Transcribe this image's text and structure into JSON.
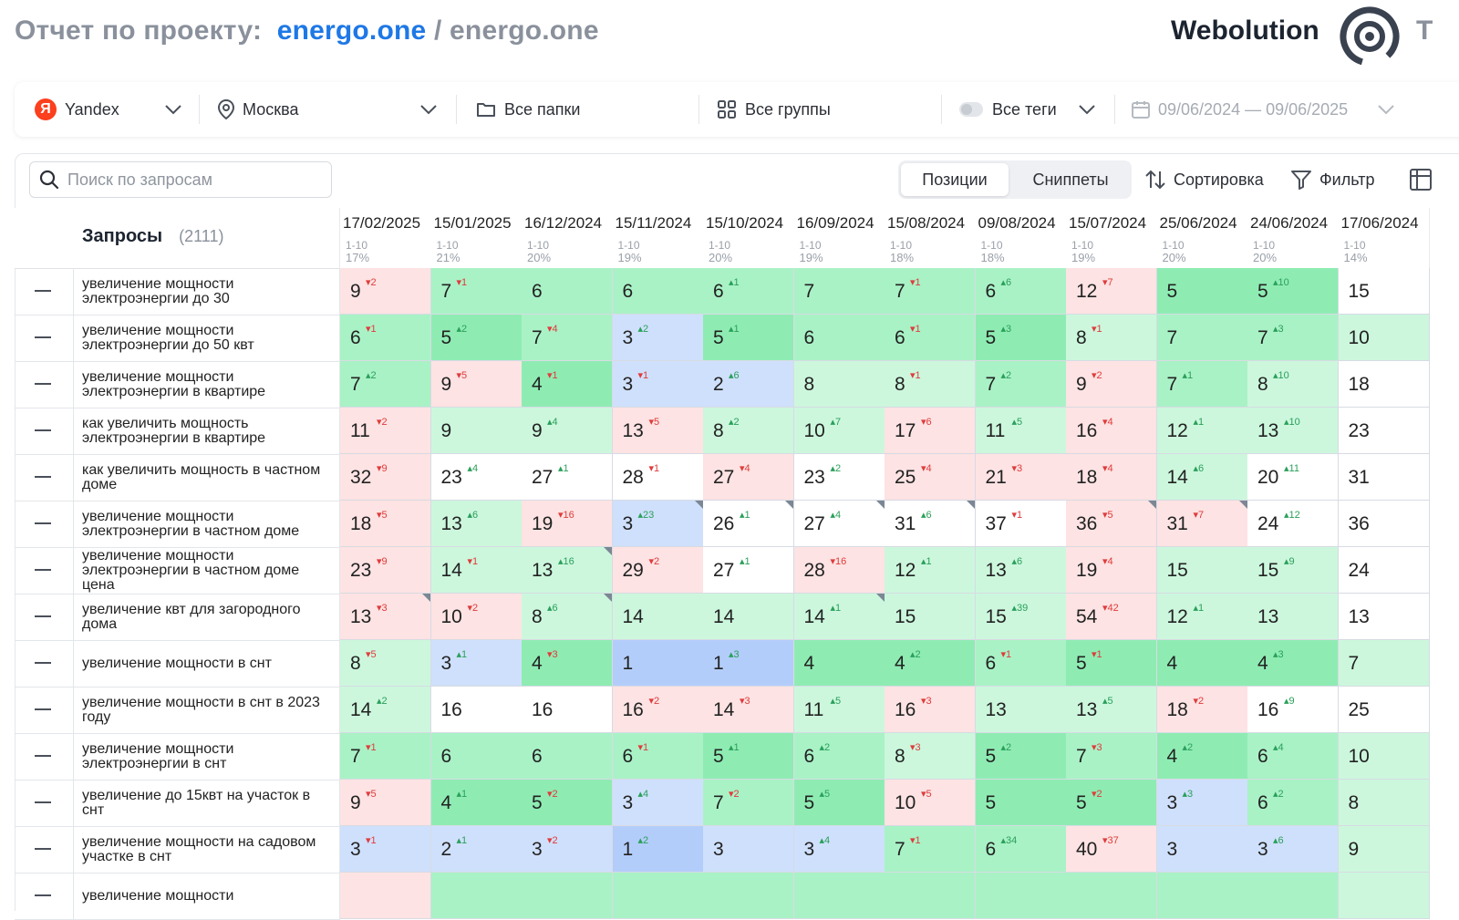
{
  "header": {
    "title_prefix": "Отчет по проекту:",
    "project": "energo.one",
    "separator": "/",
    "project_sub": "energo.one",
    "brand": "Webolution",
    "brand_cut": "Т"
  },
  "filters": {
    "engine": "Yandex",
    "region": "Москва",
    "folders": "Все папки",
    "groups": "Все группы",
    "tags": "Все теги",
    "date_range": "09/06/2024 — 09/06/2025"
  },
  "toolbar": {
    "search_placeholder": "Поиск по запросам",
    "tab_positions": "Позиции",
    "tab_snippets": "Сниппеты",
    "sort_label": "Сортировка",
    "filter_label": "Фильтр"
  },
  "table": {
    "queries_label": "Запросы",
    "queries_count": "(2111)",
    "columns": [
      {
        "date": "17/02/2025",
        "range": "1-10",
        "pct": "17%"
      },
      {
        "date": "15/01/2025",
        "range": "1-10",
        "pct": "21%"
      },
      {
        "date": "16/12/2024",
        "range": "1-10",
        "pct": "20%"
      },
      {
        "date": "15/11/2024",
        "range": "1-10",
        "pct": "19%"
      },
      {
        "date": "15/10/2024",
        "range": "1-10",
        "pct": "20%"
      },
      {
        "date": "16/09/2024",
        "range": "1-10",
        "pct": "19%"
      },
      {
        "date": "15/08/2024",
        "range": "1-10",
        "pct": "18%"
      },
      {
        "date": "09/08/2024",
        "range": "1-10",
        "pct": "18%"
      },
      {
        "date": "15/07/2024",
        "range": "1-10",
        "pct": "19%"
      },
      {
        "date": "25/06/2024",
        "range": "1-10",
        "pct": "20%"
      },
      {
        "date": "24/06/2024",
        "range": "1-10",
        "pct": "20%"
      },
      {
        "date": "17/06/2024",
        "range": "1-10",
        "pct": "14%"
      }
    ],
    "rows": [
      {
        "query": "увеличение мощности электроэнергии до 30",
        "cells": [
          [
            9,
            "d",
            2
          ],
          [
            7,
            "d",
            1
          ],
          [
            6
          ],
          [
            6
          ],
          [
            6,
            "u",
            1
          ],
          [
            7
          ],
          [
            7,
            "d",
            1
          ],
          [
            6,
            "u",
            6
          ],
          [
            12,
            "d",
            7
          ],
          [
            5
          ],
          [
            5,
            "u",
            10
          ],
          [
            15
          ]
        ]
      },
      {
        "query": "увеличение мощности электроэнергии до 50 квт",
        "cells": [
          [
            6,
            "d",
            1
          ],
          [
            5,
            "u",
            2
          ],
          [
            7,
            "d",
            4
          ],
          [
            3,
            "u",
            2
          ],
          [
            5,
            "u",
            1
          ],
          [
            6
          ],
          [
            6,
            "d",
            1
          ],
          [
            5,
            "u",
            3
          ],
          [
            8,
            "d",
            1
          ],
          [
            7
          ],
          [
            7,
            "u",
            3
          ],
          [
            10
          ]
        ]
      },
      {
        "query": "увеличение мощности электроэнергии в квартире",
        "cells": [
          [
            7,
            "u",
            2
          ],
          [
            9,
            "d",
            5
          ],
          [
            4,
            "d",
            1
          ],
          [
            3,
            "d",
            1
          ],
          [
            2,
            "u",
            6
          ],
          [
            8
          ],
          [
            8,
            "d",
            1
          ],
          [
            7,
            "u",
            2
          ],
          [
            9,
            "d",
            2
          ],
          [
            7,
            "u",
            1
          ],
          [
            8,
            "u",
            10
          ],
          [
            18
          ]
        ]
      },
      {
        "query": "как увеличить мощность электроэнергии в квартире",
        "cells": [
          [
            11,
            "d",
            2
          ],
          [
            9
          ],
          [
            9,
            "u",
            4
          ],
          [
            13,
            "d",
            5
          ],
          [
            8,
            "u",
            2
          ],
          [
            10,
            "u",
            7
          ],
          [
            17,
            "d",
            6
          ],
          [
            11,
            "u",
            5
          ],
          [
            16,
            "d",
            4
          ],
          [
            12,
            "u",
            1
          ],
          [
            13,
            "u",
            10
          ],
          [
            23
          ]
        ]
      },
      {
        "query": "как увеличить мощность в частном доме",
        "cells": [
          [
            32,
            "d",
            9
          ],
          [
            23,
            "u",
            4
          ],
          [
            27,
            "u",
            1
          ],
          [
            28,
            "d",
            1
          ],
          [
            27,
            "d",
            4
          ],
          [
            23,
            "u",
            2
          ],
          [
            25,
            "d",
            4
          ],
          [
            21,
            "d",
            3
          ],
          [
            18,
            "d",
            4
          ],
          [
            14,
            "u",
            6
          ],
          [
            20,
            "u",
            11
          ],
          [
            31
          ]
        ]
      },
      {
        "query": "увеличение мощности электроэнергии в частном доме",
        "cells": [
          [
            18,
            "d",
            5
          ],
          [
            13,
            "u",
            6
          ],
          [
            19,
            "d",
            16
          ],
          [
            3,
            "u",
            23
          ],
          [
            26,
            "u",
            1
          ],
          [
            27,
            "u",
            4
          ],
          [
            31,
            "u",
            6
          ],
          [
            37,
            "d",
            1
          ],
          [
            36,
            "d",
            5
          ],
          [
            31,
            "d",
            7
          ],
          [
            24,
            "u",
            12
          ],
          [
            36
          ]
        ]
      },
      {
        "query": "увеличение мощности электроэнергии в частном доме цена",
        "cells": [
          [
            23,
            "d",
            9
          ],
          [
            14,
            "d",
            1
          ],
          [
            13,
            "u",
            16
          ],
          [
            29,
            "d",
            2
          ],
          [
            27,
            "u",
            1
          ],
          [
            28,
            "d",
            16
          ],
          [
            12,
            "u",
            1
          ],
          [
            13,
            "u",
            6
          ],
          [
            19,
            "d",
            4
          ],
          [
            15
          ],
          [
            15,
            "u",
            9
          ],
          [
            24
          ]
        ]
      },
      {
        "query": "увеличение квт для загородного дома",
        "cells": [
          [
            13,
            "d",
            3
          ],
          [
            10,
            "d",
            2
          ],
          [
            8,
            "u",
            6
          ],
          [
            14
          ],
          [
            14
          ],
          [
            14,
            "u",
            1
          ],
          [
            15
          ],
          [
            15,
            "u",
            39
          ],
          [
            54,
            "d",
            42
          ],
          [
            12,
            "u",
            1
          ],
          [
            13
          ],
          [
            13
          ]
        ]
      },
      {
        "query": "увеличение мощности в снт",
        "cells": [
          [
            8,
            "d",
            5
          ],
          [
            3,
            "u",
            1
          ],
          [
            4,
            "d",
            3
          ],
          [
            1
          ],
          [
            1,
            "u",
            3
          ],
          [
            4
          ],
          [
            4,
            "u",
            2
          ],
          [
            6,
            "d",
            1
          ],
          [
            5,
            "d",
            1
          ],
          [
            4
          ],
          [
            4,
            "u",
            3
          ],
          [
            7
          ]
        ]
      },
      {
        "query": "увеличение мощности в снт в 2023 году",
        "cells": [
          [
            14,
            "u",
            2
          ],
          [
            16
          ],
          [
            16
          ],
          [
            16,
            "d",
            2
          ],
          [
            14,
            "d",
            3
          ],
          [
            11,
            "u",
            5
          ],
          [
            16,
            "d",
            3
          ],
          [
            13
          ],
          [
            13,
            "u",
            5
          ],
          [
            18,
            "d",
            2
          ],
          [
            16,
            "u",
            9
          ],
          [
            25
          ]
        ]
      },
      {
        "query": "увеличение мощности электроэнергии в снт",
        "cells": [
          [
            7,
            "d",
            1
          ],
          [
            6
          ],
          [
            6
          ],
          [
            6,
            "d",
            1
          ],
          [
            5,
            "u",
            1
          ],
          [
            6,
            "u",
            2
          ],
          [
            8,
            "d",
            3
          ],
          [
            5,
            "u",
            2
          ],
          [
            7,
            "d",
            3
          ],
          [
            4,
            "u",
            2
          ],
          [
            6,
            "u",
            4
          ],
          [
            10
          ]
        ]
      },
      {
        "query": "увеличение до 15квт на участок в снт",
        "cells": [
          [
            9,
            "d",
            5
          ],
          [
            4,
            "u",
            1
          ],
          [
            5,
            "d",
            2
          ],
          [
            3,
            "u",
            4
          ],
          [
            7,
            "d",
            2
          ],
          [
            5,
            "u",
            5
          ],
          [
            10,
            "d",
            5
          ],
          [
            5
          ],
          [
            5,
            "d",
            2
          ],
          [
            3,
            "u",
            3
          ],
          [
            6,
            "u",
            2
          ],
          [
            8
          ]
        ]
      },
      {
        "query": "увеличение мощности на садовом участке в снт",
        "cells": [
          [
            3,
            "d",
            1
          ],
          [
            2,
            "u",
            1
          ],
          [
            3,
            "d",
            2
          ],
          [
            1,
            "u",
            2
          ],
          [
            3
          ],
          [
            3,
            "u",
            4
          ],
          [
            7,
            "d",
            1
          ],
          [
            6,
            "u",
            34
          ],
          [
            40,
            "d",
            37
          ],
          [
            3
          ],
          [
            3,
            "u",
            6
          ],
          [
            9
          ]
        ]
      },
      {
        "query": "увеличение мощности",
        "cells": []
      }
    ]
  },
  "colors": {
    "accent": "#1e78e6",
    "red_cell": "#fde3e3",
    "white_cell": "#ffffff",
    "green_light": "#ccf7dd",
    "green_mid": "#a9f2c6",
    "green_dark": "#8eecb3",
    "blue_light": "#cfe0fc",
    "blue_dark": "#b3cdfa",
    "up": "#2aa05a",
    "down": "#e03b3b"
  },
  "icons": [
    "yandex-logo-icon",
    "map-pin-icon",
    "folder-icon",
    "grid-icon",
    "toggle-icon",
    "calendar-icon",
    "chevron-down-icon",
    "search-icon",
    "sort-icon",
    "filter-icon",
    "table-view-icon",
    "minus-icon",
    "webolution-logo-icon"
  ]
}
